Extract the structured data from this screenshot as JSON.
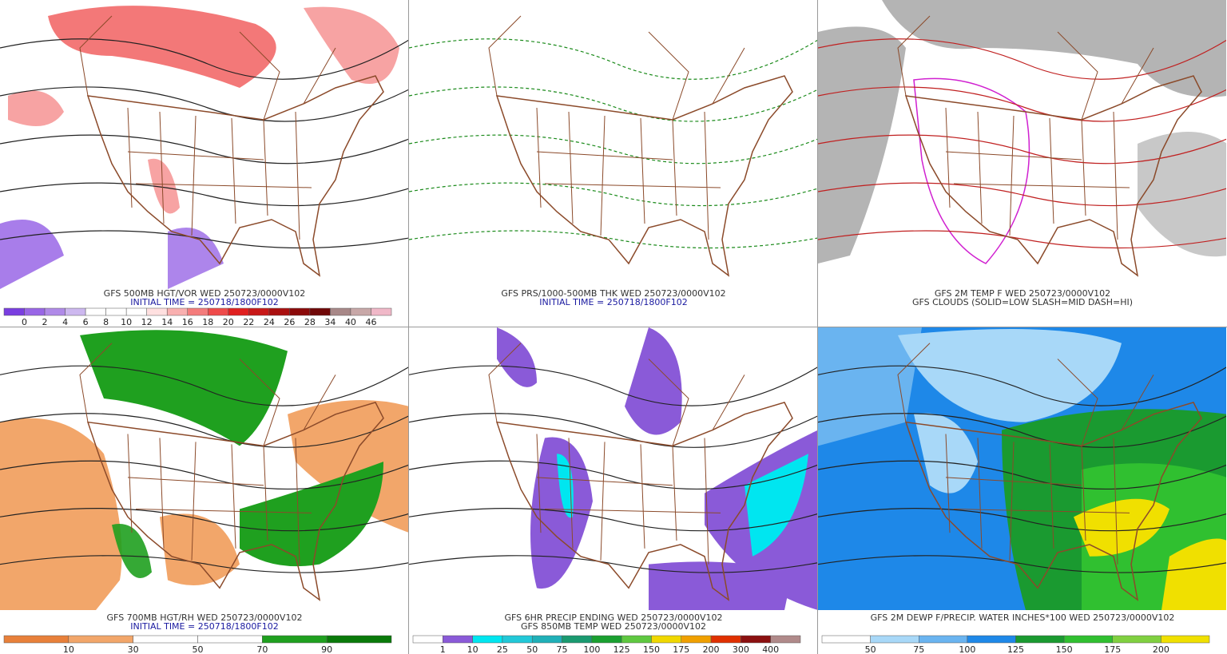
{
  "panels": [
    {
      "captions": [
        {
          "text": "GFS 500MB HGT/VOR WED 250723/0000V102",
          "color": "#333333"
        },
        {
          "text": "INITIAL TIME = 250718/1800F102",
          "color": "#1a1aa0"
        }
      ],
      "colorbar": {
        "labels": [
          "0",
          "2",
          "4",
          "6",
          "8",
          "10",
          "12",
          "14",
          "16",
          "18",
          "20",
          "22",
          "24",
          "26",
          "28",
          "34",
          "40",
          "46"
        ],
        "colors": [
          "#7a3ee0",
          "#9966e6",
          "#b08ae8",
          "#cdb8ef",
          "#ffffff",
          "#ffffff",
          "#ffffff",
          "#ffe0e0",
          "#f9b0b0",
          "#f47c7c",
          "#ef4b4b",
          "#e02020",
          "#c81818",
          "#aa1010",
          "#8b0a0a",
          "#700808",
          "#a88888",
          "#c8a8a8",
          "#f0b8c8"
        ]
      }
    },
    {
      "captions": [
        {
          "text": "GFS PRS/1000-500MB THK WED 250723/0000V102",
          "color": "#333333"
        },
        {
          "text": "INITIAL TIME = 250718/1800F102",
          "color": "#1a1aa0"
        }
      ]
    },
    {
      "captions": [
        {
          "text": "GFS 2M TEMP F WED 250723/0000V102",
          "color": "#333333"
        },
        {
          "text": "GFS CLOUDS (SOLID=LOW SLASH=MID DASH=HI)",
          "color": "#333333"
        }
      ]
    },
    {
      "captions": [
        {
          "text": "GFS 700MB HGT/RH WED 250723/0000V102",
          "color": "#333333"
        },
        {
          "text": "INITIAL TIME = 250718/1800F102",
          "color": "#1a1aa0"
        }
      ],
      "colorbar": {
        "labels": [
          "10",
          "30",
          "50",
          "70",
          "90"
        ],
        "colors": [
          "#e8803a",
          "#f2a66a",
          "#ffffff",
          "#ffffff",
          "#1fa01f",
          "#0a7a0a"
        ]
      }
    },
    {
      "captions": [
        {
          "text": "GFS 6HR PRECIP ENDING WED 250723/0000V102",
          "color": "#333333"
        },
        {
          "text": "GFS 850MB TEMP WED 250723/0000V102",
          "color": "#333333"
        }
      ],
      "colorbar": {
        "labels": [
          "1",
          "10",
          "25",
          "50",
          "75",
          "100",
          "125",
          "150",
          "175",
          "200",
          "300",
          "400"
        ],
        "colors": [
          "#ffffff",
          "#8a5ad8",
          "#00e6f0",
          "#22c8d8",
          "#20b0b8",
          "#1a9a70",
          "#1aa030",
          "#5fc840",
          "#f0d800",
          "#f0a000",
          "#e03000",
          "#8b1010",
          "#b08a8a"
        ]
      }
    },
    {
      "captions": [
        {
          "text": "GFS 2M DEWP F/PRECIP. WATER INCHES*100 WED 250723/0000V102",
          "color": "#333333"
        }
      ],
      "colorbar": {
        "labels": [
          "50",
          "75",
          "100",
          "125",
          "150",
          "175",
          "200"
        ],
        "colors": [
          "#ffffff",
          "#a8d8f8",
          "#6ab4f0",
          "#1e88e8",
          "#1a9a30",
          "#30c030",
          "#80d040",
          "#f0e000"
        ]
      }
    }
  ]
}
